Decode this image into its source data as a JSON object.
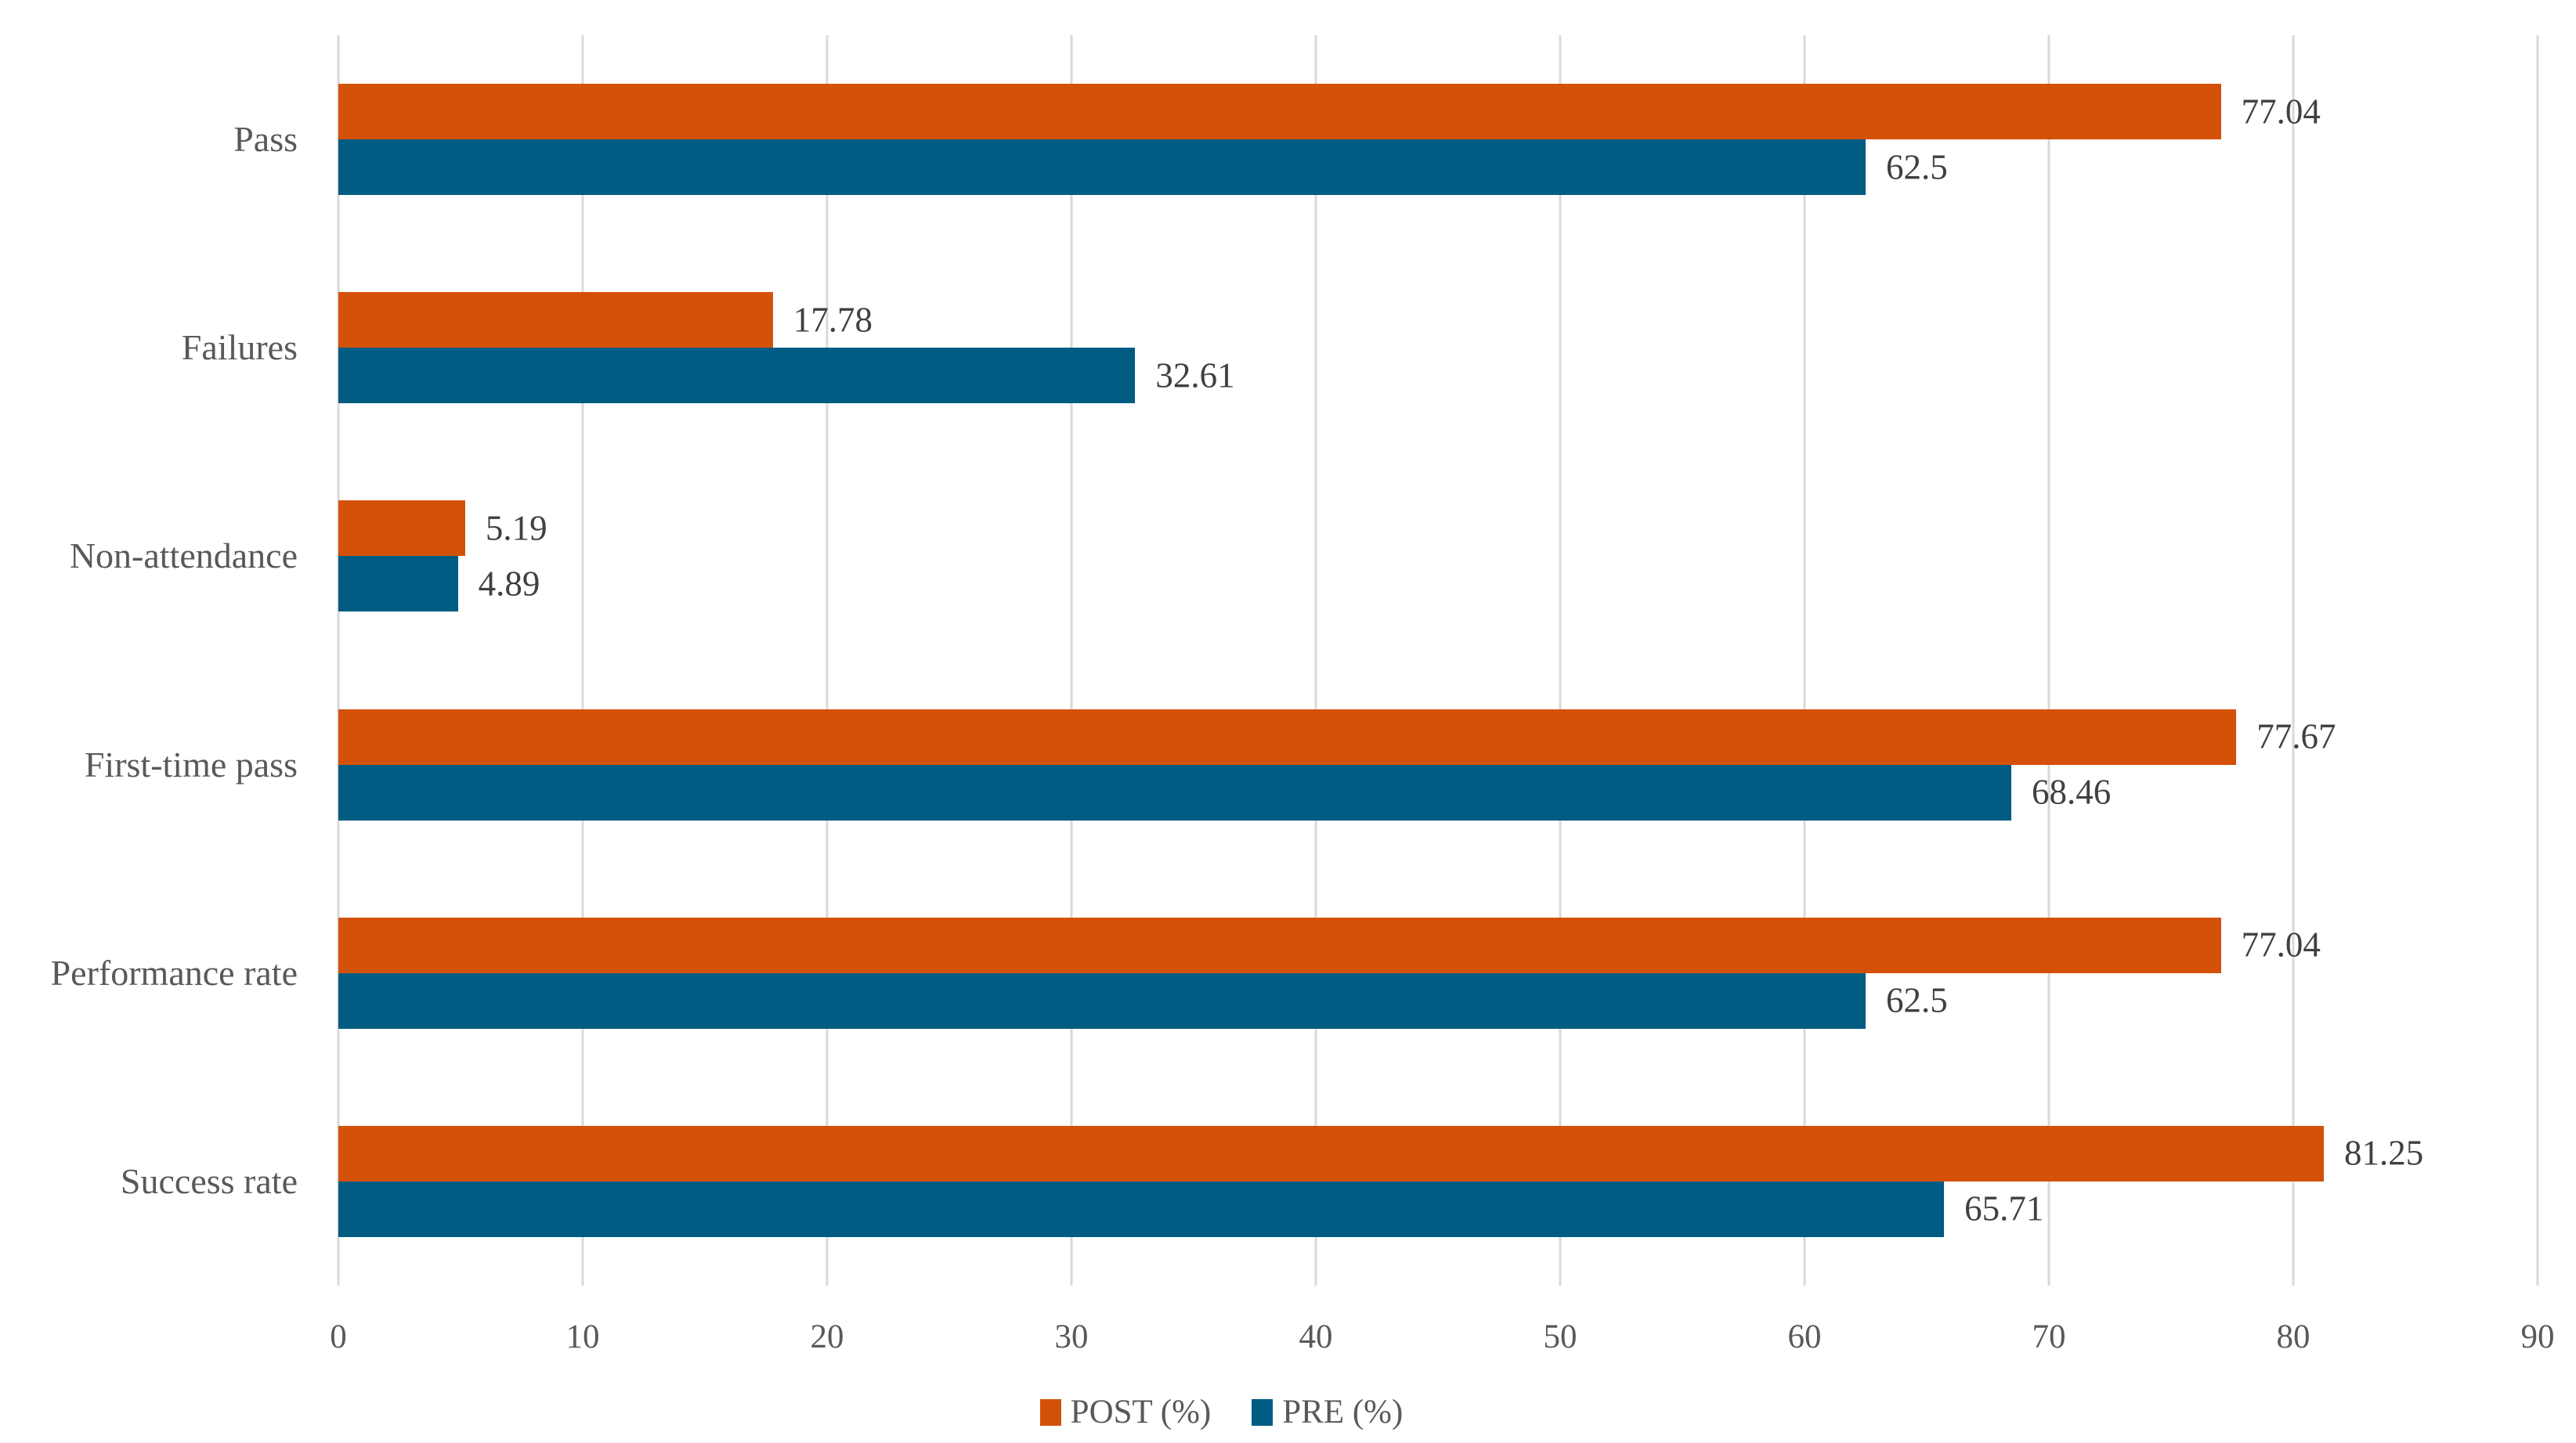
{
  "chart_data": {
    "type": "bar",
    "orientation": "horizontal",
    "title": "",
    "xlabel": "",
    "ylabel": "",
    "categories": [
      "Pass",
      "Failures",
      "Non-attendance",
      "First-time pass",
      "Performance rate",
      "Success rate"
    ],
    "series": [
      {
        "name": "POST (%)",
        "color": "#D4510A",
        "values": [
          77.04,
          17.78,
          5.19,
          77.67,
          77.04,
          81.25
        ],
        "labels": [
          "77.04",
          "17.78",
          "5.19",
          "77.67",
          "77.04",
          "81.25"
        ]
      },
      {
        "name": "PRE (%)",
        "color": "#005C82",
        "values": [
          62.5,
          32.61,
          4.89,
          68.46,
          62.5,
          65.71
        ],
        "labels": [
          "62.5",
          "32.61",
          "4.89",
          "68.46",
          "62.5",
          "65.71"
        ]
      }
    ],
    "xlim": [
      0,
      90
    ],
    "xticks": [
      0,
      10,
      20,
      30,
      40,
      50,
      60,
      70,
      80,
      90
    ],
    "grid": "vertical-only",
    "legend_position": "bottom-center"
  },
  "colors": {
    "post_bar": "#D4510A",
    "pre_bar": "#005C82",
    "gridline": "#D9D9D9",
    "category_text": "#595959",
    "tick_text": "#595959",
    "value_text": "#404040"
  }
}
